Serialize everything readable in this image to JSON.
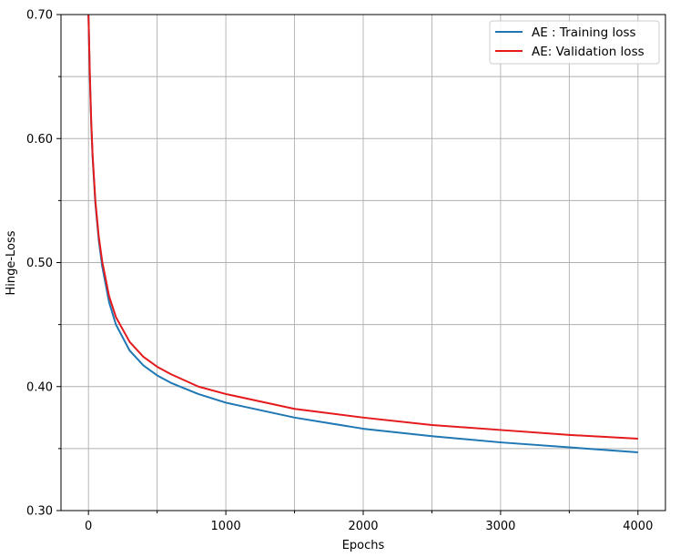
{
  "chart_data": {
    "type": "line",
    "title": "",
    "xlabel": "Epochs",
    "ylabel": "Hinge-Loss",
    "xlim": [
      -200,
      4200
    ],
    "ylim": [
      0.3,
      0.7
    ],
    "x_ticks": [
      0,
      1000,
      2000,
      3000,
      4000
    ],
    "x_tick_labels": [
      "0",
      "1000",
      "2000",
      "3000",
      "4000"
    ],
    "x_minor_ticks": [
      500,
      1500,
      2500,
      3500
    ],
    "y_ticks": [
      0.3,
      0.4,
      0.5,
      0.6,
      0.7
    ],
    "y_tick_labels": [
      "0.30",
      "0.40",
      "0.50",
      "0.60",
      "0.70"
    ],
    "y_minor_ticks": [
      0.35,
      0.45,
      0.55,
      0.65
    ],
    "grid": true,
    "legend_position": "top-right",
    "series": [
      {
        "name": "AE : Training loss",
        "color": "#1f77b4",
        "x": [
          0,
          10,
          20,
          30,
          50,
          75,
          100,
          150,
          200,
          300,
          400,
          500,
          600,
          800,
          1000,
          1500,
          2000,
          2500,
          3000,
          3500,
          4000
        ],
        "y": [
          0.7,
          0.65,
          0.612,
          0.585,
          0.548,
          0.518,
          0.497,
          0.468,
          0.45,
          0.429,
          0.417,
          0.409,
          0.403,
          0.394,
          0.387,
          0.375,
          0.366,
          0.36,
          0.355,
          0.351,
          0.347
        ]
      },
      {
        "name": "AE: Validation loss",
        "color": "#e41a1c",
        "x": [
          0,
          10,
          20,
          30,
          50,
          75,
          100,
          150,
          200,
          300,
          400,
          500,
          600,
          800,
          1000,
          1500,
          2000,
          2500,
          3000,
          3500,
          4000
        ],
        "y": [
          0.7,
          0.652,
          0.614,
          0.587,
          0.55,
          0.521,
          0.501,
          0.473,
          0.456,
          0.436,
          0.424,
          0.416,
          0.41,
          0.4,
          0.394,
          0.382,
          0.375,
          0.369,
          0.365,
          0.361,
          0.358
        ]
      }
    ]
  }
}
